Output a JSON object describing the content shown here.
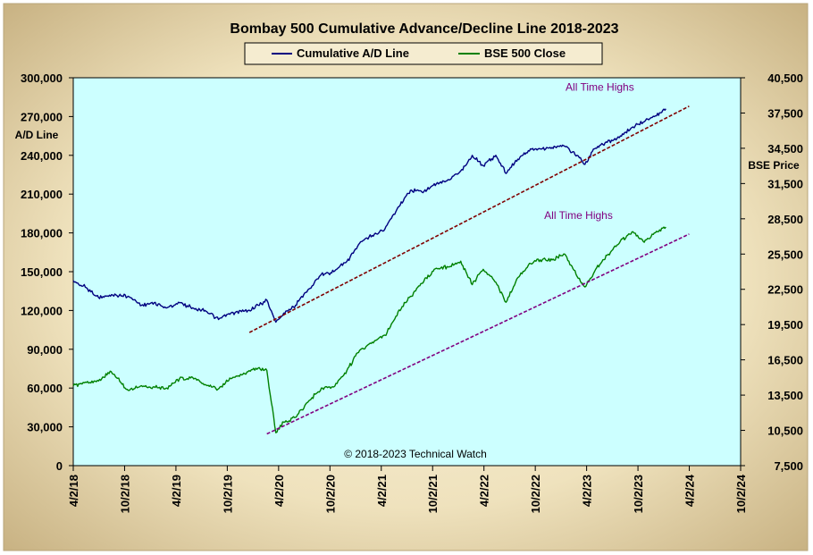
{
  "chart_data": {
    "type": "line",
    "title": "Bombay 500 Cumulative  Advance/Decline  Line  2018-2023",
    "ylabel_left": "A/D Line",
    "ylabel_right": "BSE Price",
    "ylim_left": [
      0,
      300000
    ],
    "ylim_right": [
      7500,
      40500
    ],
    "xlim": [
      "2018-04-02",
      "2024-10-02"
    ],
    "grid": false,
    "legend_position": "top-center",
    "background_color": "#ccffff",
    "x_tick_labels": [
      "4/2/18",
      "10/2/18",
      "4/2/19",
      "10/2/19",
      "4/2/20",
      "10/2/20",
      "4/2/21",
      "10/2/21",
      "4/2/22",
      "10/2/22",
      "4/2/23",
      "10/2/23",
      "4/2/24",
      "10/2/24"
    ],
    "y_left_tick_labels": [
      "300,000",
      "270,000",
      "240,000",
      "210,000",
      "180,000",
      "150,000",
      "120,000",
      "90,000",
      "60,000",
      "30,000",
      "0"
    ],
    "y_right_tick_labels": [
      "40,500",
      "37,500",
      "34,500",
      "31,500",
      "28,500",
      "25,500",
      "22,500",
      "19,500",
      "16,500",
      "13,500",
      "10,500",
      "7,500"
    ],
    "series": [
      {
        "name": "Cumulative A/D Line",
        "axis": "left",
        "color": "#000080",
        "x": [
          "2018-04-02",
          "2018-05-15",
          "2018-07-01",
          "2018-09-01",
          "2018-10-15",
          "2018-12-01",
          "2019-01-15",
          "2019-03-01",
          "2019-04-15",
          "2019-06-01",
          "2019-07-15",
          "2019-09-01",
          "2019-10-15",
          "2019-12-15",
          "2020-01-20",
          "2020-02-20",
          "2020-03-23",
          "2020-04-20",
          "2020-06-01",
          "2020-07-15",
          "2020-09-01",
          "2020-10-15",
          "2020-12-01",
          "2021-01-15",
          "2021-03-01",
          "2021-04-15",
          "2021-06-01",
          "2021-07-15",
          "2021-09-01",
          "2021-10-15",
          "2021-11-30",
          "2022-01-10",
          "2022-02-20",
          "2022-03-31",
          "2022-05-15",
          "2022-06-20",
          "2022-08-01",
          "2022-09-15",
          "2022-10-20",
          "2022-12-01",
          "2023-01-15",
          "2023-02-28",
          "2023-03-28",
          "2023-05-01",
          "2023-06-15",
          "2023-08-01",
          "2023-09-15",
          "2023-10-25",
          "2023-11-30",
          "2024-01-10"
        ],
        "values": [
          143000,
          138000,
          130000,
          132000,
          131000,
          124000,
          126000,
          122000,
          126000,
          122000,
          120000,
          113000,
          118000,
          120000,
          124000,
          128000,
          111000,
          118000,
          124000,
          136000,
          148000,
          150000,
          158000,
          172000,
          178000,
          183000,
          200000,
          213000,
          212000,
          218000,
          221000,
          228000,
          240000,
          232000,
          240000,
          226000,
          237000,
          245000,
          245000,
          246000,
          247000,
          240000,
          233000,
          245000,
          250000,
          255000,
          262000,
          266000,
          270000,
          276000
        ]
      },
      {
        "name": "BSE 500 Close",
        "axis": "right",
        "color": "#008000",
        "x": [
          "2018-04-02",
          "2018-05-15",
          "2018-07-01",
          "2018-08-15",
          "2018-10-15",
          "2018-12-01",
          "2019-01-15",
          "2019-03-01",
          "2019-04-15",
          "2019-06-01",
          "2019-07-15",
          "2019-08-30",
          "2019-10-15",
          "2019-12-15",
          "2020-01-20",
          "2020-02-20",
          "2020-03-23",
          "2020-04-20",
          "2020-06-01",
          "2020-07-15",
          "2020-09-01",
          "2020-10-15",
          "2020-12-01",
          "2021-01-15",
          "2021-03-01",
          "2021-04-15",
          "2021-06-01",
          "2021-07-15",
          "2021-09-01",
          "2021-10-15",
          "2021-11-30",
          "2022-01-10",
          "2022-02-20",
          "2022-03-31",
          "2022-05-15",
          "2022-06-20",
          "2022-08-01",
          "2022-09-15",
          "2022-10-20",
          "2022-12-01",
          "2023-01-15",
          "2023-02-28",
          "2023-03-28",
          "2023-05-01",
          "2023-06-15",
          "2023-08-01",
          "2023-09-15",
          "2023-10-25",
          "2023-11-30",
          "2024-01-10"
        ],
        "values": [
          14300,
          14600,
          14700,
          15500,
          13900,
          14300,
          14200,
          14100,
          14900,
          15000,
          14400,
          14000,
          14900,
          15500,
          15800,
          15600,
          10300,
          11200,
          11600,
          12900,
          14100,
          14200,
          15600,
          17300,
          18000,
          18600,
          20600,
          21900,
          23200,
          24300,
          24400,
          24900,
          22900,
          24200,
          23100,
          21400,
          23500,
          24700,
          25000,
          25000,
          25500,
          23600,
          22700,
          24000,
          25400,
          26600,
          27400,
          26500,
          27300,
          27800
        ]
      }
    ],
    "trendlines": [
      {
        "axis": "left",
        "color": "#800000",
        "x": [
          "2019-12-20",
          "2024-04-02"
        ],
        "values": [
          103000,
          278000
        ]
      },
      {
        "axis": "right",
        "color": "#800080",
        "x": [
          "2020-02-20",
          "2024-04-02"
        ],
        "values": [
          10200,
          27200
        ]
      }
    ],
    "annotations": [
      {
        "text": "All Time Highs",
        "x": "2023-05-20",
        "value": 290000,
        "axis": "left"
      },
      {
        "text": "All Time Highs",
        "x": "2023-03-05",
        "value": 28500,
        "axis": "right"
      }
    ],
    "credit": "© 2018-2023  Technical Watch"
  }
}
